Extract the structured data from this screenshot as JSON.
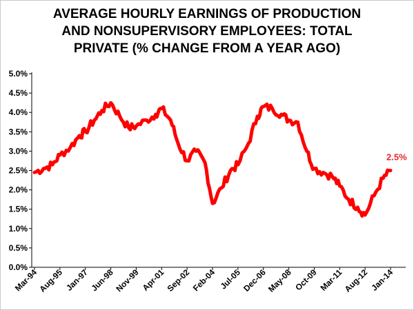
{
  "chart_data": {
    "type": "line",
    "title": "AVERAGE HOURLY EARNINGS OF PRODUCTION\nAND NONSUPERVISORY EMPLOYEES: TOTAL\nPRIVATE (% CHANGE FROM A YEAR AGO)",
    "xlabel": "",
    "ylabel": "",
    "ylim": [
      0,
      5
    ],
    "y_ticks": [
      "0.0%",
      "0.5%",
      "1.0%",
      "1.5%",
      "2.0%",
      "2.5%",
      "3.0%",
      "3.5%",
      "4.0%",
      "4.5%",
      "5.0%"
    ],
    "x_ticks": [
      "Mar-94",
      "Aug-95",
      "Jan-97",
      "Jun-98",
      "Nov-99",
      "Apr-01",
      "Sep-02",
      "Feb-04",
      "Jul-05",
      "Dec-06",
      "May-08",
      "Oct-09",
      "Mar-11",
      "Aug-12",
      "Jan-14"
    ],
    "grid": false,
    "legend": "none",
    "line_color": "#ff0000",
    "last_value_label": "2.5%",
    "last_value_color": "#e8262a",
    "series": [
      {
        "x": [
          "1994-03",
          "1994-09",
          "1995-03",
          "1995-08",
          "1996-03",
          "1996-09",
          "1997-01",
          "1997-07",
          "1997-12",
          "1998-06",
          "1998-12",
          "1999-06",
          "1999-11",
          "2000-06",
          "2000-12",
          "2001-04",
          "2001-10",
          "2002-03",
          "2002-09",
          "2003-03",
          "2003-09",
          "2004-02",
          "2004-08",
          "2005-02",
          "2005-07",
          "2006-02",
          "2006-08",
          "2006-12",
          "2007-06",
          "2007-12",
          "2008-05",
          "2008-11",
          "2009-05",
          "2009-10",
          "2010-04",
          "2010-10",
          "2011-03",
          "2011-09",
          "2012-03",
          "2012-08",
          "2013-02",
          "2013-08",
          "2014-01"
        ],
        "values": [
          2.45,
          2.55,
          2.65,
          2.9,
          3.1,
          3.4,
          3.5,
          3.8,
          4.05,
          4.25,
          3.9,
          3.6,
          3.65,
          3.8,
          3.95,
          4.1,
          3.8,
          3.2,
          2.75,
          3.0,
          2.7,
          1.65,
          2.05,
          2.5,
          2.65,
          3.2,
          3.9,
          4.15,
          4.1,
          3.95,
          3.8,
          3.75,
          3.0,
          2.55,
          2.45,
          2.35,
          2.1,
          1.75,
          1.55,
          1.35,
          1.85,
          2.3,
          2.5
        ]
      }
    ]
  }
}
